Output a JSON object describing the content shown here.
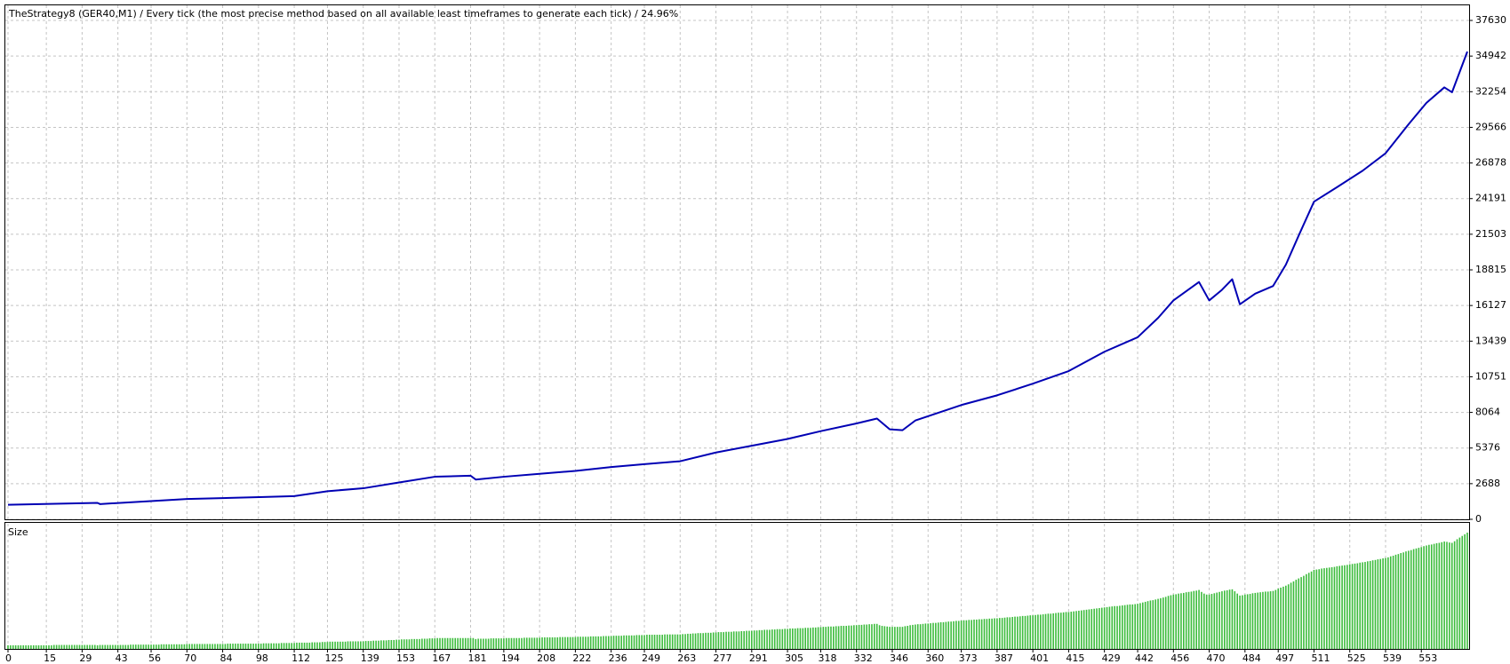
{
  "chart_data": [
    {
      "type": "line",
      "title": "TheStrategy8 (GER40,M1) / Every tick (the most precise method based on all available least timeframes to generate each tick) / 24.96%",
      "color": "#0000b4",
      "x": [
        0,
        35,
        36,
        70,
        100,
        112,
        125,
        139,
        153,
        167,
        181,
        183,
        194,
        208,
        222,
        236,
        249,
        263,
        277,
        291,
        305,
        318,
        332,
        340,
        345,
        350,
        355,
        373,
        387,
        401,
        415,
        429,
        442,
        450,
        456,
        466,
        470,
        475,
        479,
        482,
        488,
        495,
        500,
        505,
        511,
        520,
        530,
        539,
        548,
        555,
        562,
        565,
        571
      ],
      "values": [
        1100,
        1240,
        1150,
        1530,
        1680,
        1750,
        2120,
        2340,
        2780,
        3210,
        3290,
        3000,
        3210,
        3430,
        3650,
        3940,
        4160,
        4380,
        5040,
        5550,
        6060,
        6650,
        7230,
        7600,
        6790,
        6720,
        7450,
        8620,
        9350,
        10230,
        11180,
        12640,
        13730,
        15190,
        16510,
        17900,
        16510,
        17310,
        18110,
        16220,
        17020,
        17600,
        19210,
        21400,
        23960,
        25050,
        26290,
        27610,
        29800,
        31410,
        32580,
        32210,
        35280
      ],
      "xlim": [
        0,
        571
      ],
      "ylim": [
        0,
        38770
      ],
      "yticks": [
        0,
        2688,
        5376,
        8064,
        10751,
        13439,
        16127,
        18815,
        21503,
        24191,
        26878,
        29566,
        32254,
        34942,
        37630
      ],
      "grid": true
    },
    {
      "type": "bar",
      "title": "Size",
      "color": "#3cbc3c",
      "xlim": [
        0,
        571
      ],
      "ylim": [
        0,
        38
      ],
      "xticks": [
        0,
        15,
        29,
        43,
        56,
        70,
        84,
        98,
        112,
        125,
        139,
        153,
        167,
        181,
        194,
        208,
        222,
        236,
        249,
        263,
        277,
        291,
        305,
        318,
        332,
        346,
        360,
        373,
        387,
        401,
        415,
        429,
        442,
        456,
        470,
        484,
        497,
        511,
        525,
        539,
        553
      ],
      "grid": true,
      "values": [
        1.1,
        1.1,
        1.1,
        1.1,
        1.1,
        1.1,
        1.1,
        1.1,
        1.1,
        1.1,
        1.1,
        1.1,
        1.1,
        1.1,
        1.1,
        1.1,
        1.1,
        1.1,
        1.2,
        1.2,
        1.2,
        1.2,
        1.2,
        1.2,
        1.2,
        1.2,
        1.2,
        1.2,
        1.2,
        1.2,
        1.2,
        1.2,
        1.2,
        1.2,
        1.2,
        1.1,
        1.2,
        1.2,
        1.2,
        1.2,
        1.2,
        1.2,
        1.2,
        1.2,
        1.2,
        1.2,
        1.2,
        1.2,
        1.3,
        1.3,
        1.3,
        1.3,
        1.3,
        1.3,
        1.3,
        1.3,
        1.3,
        1.3,
        1.3,
        1.3,
        1.4,
        1.4,
        1.4,
        1.4,
        1.4,
        1.4,
        1.4,
        1.4,
        1.4,
        1.4,
        1.5,
        1.5,
        1.5,
        1.5,
        1.5,
        1.5,
        1.5,
        1.5,
        1.5,
        1.5,
        1.5,
        1.5,
        1.5,
        1.5,
        1.5,
        1.5,
        1.6,
        1.6,
        1.6,
        1.6,
        1.6,
        1.6,
        1.6,
        1.6,
        1.6,
        1.6,
        1.6,
        1.6,
        1.6,
        1.6,
        1.7,
        1.7,
        1.7,
        1.7,
        1.7,
        1.7,
        1.7,
        1.8,
        1.8,
        1.8,
        1.8,
        1.8,
        1.8,
        1.9,
        1.9,
        1.9,
        1.9,
        1.9,
        1.9,
        2.0,
        2.0,
        2.0,
        2.0,
        2.1,
        2.1,
        2.1,
        2.2,
        2.2,
        2.2,
        2.2,
        2.2,
        2.2,
        2.2,
        2.3,
        2.3,
        2.3,
        2.3,
        2.3,
        2.3,
        2.3,
        2.4,
        2.4,
        2.4,
        2.5,
        2.5,
        2.5,
        2.6,
        2.6,
        2.6,
        2.7,
        2.7,
        2.7,
        2.8,
        2.8,
        2.9,
        2.9,
        2.9,
        2.9,
        3.0,
        3.0,
        3.0,
        3.0,
        3.1,
        3.1,
        3.1,
        3.2,
        3.2,
        3.2,
        3.3,
        3.3,
        3.3,
        3.3,
        3.3,
        3.3,
        3.3,
        3.3,
        3.3,
        3.3,
        3.3,
        3.3,
        3.3,
        3.3,
        3.3,
        3.0,
        3.1,
        3.1,
        3.1,
        3.1,
        3.1,
        3.2,
        3.2,
        3.2,
        3.2,
        3.2,
        3.2,
        3.3,
        3.3,
        3.3,
        3.3,
        3.3,
        3.3,
        3.3,
        3.4,
        3.4,
        3.4,
        3.4,
        3.4,
        3.4,
        3.4,
        3.5,
        3.5,
        3.5,
        3.5,
        3.5,
        3.5,
        3.5,
        3.6,
        3.6,
        3.6,
        3.6,
        3.6,
        3.6,
        3.6,
        3.7,
        3.7,
        3.7,
        3.7,
        3.7,
        3.8,
        3.8,
        3.8,
        3.8,
        3.8,
        3.9,
        3.9,
        3.9,
        3.9,
        4.0,
        4.0,
        4.0,
        4.0,
        4.1,
        4.1,
        4.1,
        4.1,
        4.1,
        4.2,
        4.2,
        4.2,
        4.2,
        4.3,
        4.3,
        4.3,
        4.3,
        4.3,
        4.3,
        4.3,
        4.4,
        4.4,
        4.4,
        4.4,
        4.4,
        4.4,
        4.4,
        4.5,
        4.5,
        4.6,
        4.6,
        4.7,
        4.7,
        4.8,
        4.8,
        4.8,
        4.9,
        4.9,
        4.9,
        5.0,
        5.0,
        5.1,
        5.1,
        5.1,
        5.2,
        5.2,
        5.2,
        5.3,
        5.3,
        5.3,
        5.4,
        5.4,
        5.5,
        5.5,
        5.5,
        5.6,
        5.6,
        5.7,
        5.7,
        5.8,
        5.8,
        5.8,
        5.9,
        5.9,
        6.0,
        6.0,
        6.0,
        6.1,
        6.1,
        6.2,
        6.2,
        6.2,
        6.3,
        6.3,
        6.3,
        6.4,
        6.4,
        6.4,
        6.5,
        6.5,
        6.6,
        6.6,
        6.7,
        6.7,
        6.8,
        6.8,
        6.8,
        6.9,
        6.9,
        7.0,
        7.0,
        7.0,
        7.1,
        7.1,
        7.2,
        7.2,
        7.3,
        7.3,
        7.4,
        7.4,
        7.5,
        7.5,
        7.6,
        7.6,
        7.2,
        7.0,
        6.9,
        6.8,
        6.7,
        6.7,
        6.7,
        6.7,
        6.7,
        6.7,
        6.9,
        7.0,
        7.2,
        7.3,
        7.4,
        7.5,
        7.5,
        7.6,
        7.7,
        7.7,
        7.8,
        7.9,
        7.9,
        8.0,
        8.1,
        8.1,
        8.2,
        8.3,
        8.3,
        8.4,
        8.5,
        8.5,
        8.6,
        8.7,
        8.7,
        8.8,
        8.8,
        8.9,
        8.9,
        9.0,
        9.0,
        9.1,
        9.1,
        9.2,
        9.2,
        9.3,
        9.3,
        9.4,
        9.4,
        9.5,
        9.6,
        9.6,
        9.7,
        9.8,
        9.8,
        9.9,
        10.0,
        10.0,
        10.1,
        10.2,
        10.2,
        10.3,
        10.4,
        10.4,
        10.5,
        10.6,
        10.7,
        10.7,
        10.8,
        10.9,
        11.0,
        11.0,
        11.1,
        11.2,
        11.2,
        11.3,
        11.4,
        11.5,
        11.6,
        11.7,
        11.8,
        11.9,
        12.0,
        12.1,
        12.2,
        12.3,
        12.4,
        12.5,
        12.6,
        12.7,
        12.8,
        12.9,
        13.0,
        13.0,
        13.1,
        13.2,
        13.3,
        13.4,
        13.5,
        13.5,
        13.6,
        13.7,
        13.9,
        14.1,
        14.3,
        14.5,
        14.7,
        14.8,
        15.0,
        15.2,
        15.4,
        15.6,
        15.8,
        16.1,
        16.3,
        16.5,
        16.6,
        16.8,
        16.9,
        17.0,
        17.2,
        17.3,
        17.4,
        17.6,
        17.7,
        17.9,
        17.3,
        16.8,
        16.5,
        16.5,
        16.7,
        16.9,
        17.1,
        17.3,
        17.5,
        17.7,
        17.8,
        18.0,
        18.1,
        17.5,
        16.8,
        16.2,
        16.3,
        16.5,
        16.6,
        16.7,
        16.9,
        17.0,
        17.1,
        17.2,
        17.3,
        17.4,
        17.4,
        17.5,
        17.6,
        17.9,
        18.3,
        18.6,
        18.9,
        19.2,
        19.6,
        20.1,
        20.5,
        21.0,
        21.4,
        21.8,
        22.2,
        22.7,
        23.1,
        23.5,
        24.0,
        24.1,
        24.2,
        24.4,
        24.5,
        24.6,
        24.7,
        24.8,
        24.9,
        25.1,
        25.2,
        25.3,
        25.4,
        25.5,
        25.7,
        25.8,
        25.9,
        26.0,
        26.2,
        26.3,
        26.4,
        26.6,
        26.7,
        26.9,
        27.0,
        27.2,
        27.3,
        27.5,
        27.6,
        27.8,
        28.1,
        28.3,
        28.6,
        28.8,
        29.1,
        29.3,
        29.6,
        29.8,
        30.0,
        30.3,
        30.5,
        30.7,
        30.9,
        31.2,
        31.4,
        31.6,
        31.7,
        31.9,
        32.1,
        32.2,
        32.4,
        32.6,
        32.5,
        32.3,
        32.2,
        32.7,
        33.3,
        33.8,
        34.3,
        34.8,
        35.3
      ]
    }
  ]
}
